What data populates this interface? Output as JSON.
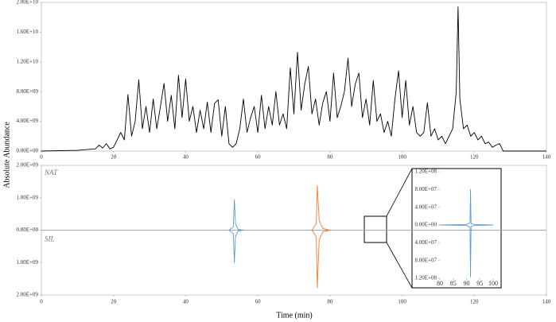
{
  "chart_data": [
    {
      "type": "line",
      "y_label": "Absolute Abundance",
      "xlim": [
        0,
        140
      ],
      "xticks": [
        0,
        20,
        40,
        60,
        80,
        100,
        120,
        140
      ],
      "ylim": [
        0,
        20000000000.0
      ],
      "yticks": [
        {
          "value": 0,
          "label": "0.00E+00"
        },
        {
          "value": 4000000000.0,
          "label": "4.00E+09"
        },
        {
          "value": 8000000000.0,
          "label": "8.00E+09"
        },
        {
          "value": 12000000000.0,
          "label": "1.20E+10"
        },
        {
          "value": 16000000000.0,
          "label": "1.60E+10"
        },
        {
          "value": 20000000000.0,
          "label": "2.00E+10"
        }
      ],
      "series": [
        {
          "color": "#000000",
          "x": [
            0,
            10,
            15,
            16,
            17,
            18,
            19,
            20,
            21,
            22,
            23,
            24,
            25,
            26,
            27,
            28,
            29,
            30,
            31,
            32,
            33,
            34,
            35,
            36,
            37,
            38,
            39,
            40,
            41,
            42,
            43,
            44,
            45,
            46,
            47,
            48,
            49,
            50,
            51,
            52,
            53,
            54,
            55,
            56,
            57,
            58,
            59,
            60,
            61,
            62,
            63,
            64,
            65,
            66,
            67,
            68,
            69,
            70,
            71,
            72,
            73,
            74,
            75,
            76,
            77,
            78,
            79,
            80,
            81,
            82,
            83,
            84,
            85,
            86,
            87,
            88,
            89,
            90,
            91,
            92,
            93,
            94,
            95,
            96,
            97,
            98,
            99,
            100,
            101,
            102,
            103,
            104,
            105,
            106,
            107,
            108,
            109,
            110,
            111,
            112,
            113,
            114,
            115,
            115.5,
            116,
            117,
            118,
            119,
            120,
            121,
            122,
            123,
            124,
            125,
            126,
            127,
            128,
            140
          ],
          "values": [
            0,
            100000000.0,
            300000000.0,
            800000000.0,
            400000000.0,
            1000000000.0,
            300000000.0,
            500000000.0,
            1500000000.0,
            2500000000.0,
            1500000000.0,
            7600000000.0,
            2000000000.0,
            4000000000.0,
            9600000000.0,
            3000000000.0,
            6000000000.0,
            2500000000.0,
            7000000000.0,
            3000000000.0,
            6000000000.0,
            9100000000.0,
            4000000000.0,
            7500000000.0,
            3000000000.0,
            10200000000.0,
            4500000000.0,
            9700000000.0,
            4000000000.0,
            6000000000.0,
            2500000000.0,
            5500000000.0,
            3000000000.0,
            6600000000.0,
            2500000000.0,
            6400000000.0,
            6900000000.0,
            2000000000.0,
            6000000000.0,
            1000000000.0,
            500000000.0,
            1000000000.0,
            3000000000.0,
            7000000000.0,
            2500000000.0,
            4500000000.0,
            6000000000.0,
            2500000000.0,
            7500000000.0,
            3000000000.0,
            6000000000.0,
            3500000000.0,
            8000000000.0,
            3500000000.0,
            5000000000.0,
            3000000000.0,
            11200000000.0,
            5000000000.0,
            13300000000.0,
            5500000000.0,
            9000000000.0,
            11400000000.0,
            5000000000.0,
            7000000000.0,
            3500000000.0,
            6500000000.0,
            8000000000.0,
            4000000000.0,
            10500000000.0,
            4500000000.0,
            6000000000.0,
            8000000000.0,
            12500000000.0,
            6000000000.0,
            9000000000.0,
            10500000000.0,
            4500000000.0,
            7000000000.0,
            3500000000.0,
            9500000000.0,
            4000000000.0,
            5000000000.0,
            2500000000.0,
            4000000000.0,
            2000000000.0,
            7000000000.0,
            10800000000.0,
            4500000000.0,
            9500000000.0,
            3500000000.0,
            6000000000.0,
            2500000000.0,
            2000000000.0,
            2500000000.0,
            6500000000.0,
            2000000000.0,
            3000000000.0,
            1500000000.0,
            2000000000.0,
            1000000000.0,
            2000000000.0,
            3000000000.0,
            8000000000.0,
            19400000000.0,
            7000000000.0,
            3000000000.0,
            3500000000.0,
            2000000000.0,
            2500000000.0,
            1500000000.0,
            2000000000.0,
            1000000000.0,
            1200000000.0,
            500000000.0,
            800000000.0,
            1000000000.0,
            0,
            0
          ]
        }
      ]
    },
    {
      "type": "line",
      "x_label": "Time (min)",
      "annotations": [
        "NAT",
        "SIL"
      ],
      "xlim": [
        0,
        140
      ],
      "xticks": [
        0,
        20,
        40,
        60,
        80,
        100,
        120,
        140
      ],
      "ylim": [
        -2000000000.0,
        2000000000.0
      ],
      "yticks": [
        {
          "value": -2000000000.0,
          "label": "2.00E+09"
        },
        {
          "value": -1000000000.0,
          "label": "1.00E+09"
        },
        {
          "value": 0,
          "label": "0.00E+00"
        },
        {
          "value": 1000000000.0,
          "label": "1.00E+09"
        },
        {
          "value": 2000000000.0,
          "label": "2.00E+09"
        }
      ],
      "series": [
        {
          "color": "#a6a6a6",
          "x": [
            0,
            140
          ],
          "values": [
            0,
            0
          ]
        },
        {
          "color": "#5b9bd5",
          "x": [
            52,
            53.2,
            53.5,
            53.8,
            54.5,
            56
          ],
          "values": [
            0,
            100000000.0,
            950000000.0,
            200000000.0,
            30000000.0,
            0
          ]
        },
        {
          "color": "#5b9bd5",
          "x": [
            52,
            53.2,
            53.5,
            53.8,
            54.5,
            56
          ],
          "values": [
            0,
            -100000000.0,
            -1000000000.0,
            -200000000.0,
            -30000000.0,
            0
          ]
        },
        {
          "color": "#ed7d31",
          "x": [
            75,
            76.2,
            76.5,
            77,
            78,
            80
          ],
          "values": [
            0,
            200000000.0,
            1380000000.0,
            300000000.0,
            50000000.0,
            0
          ]
        },
        {
          "color": "#ed7d31",
          "x": [
            75,
            76.2,
            76.5,
            77,
            78,
            80
          ],
          "values": [
            0,
            -200000000.0,
            -1780000000.0,
            -300000000.0,
            -50000000.0,
            0
          ]
        }
      ]
    },
    {
      "type": "line",
      "xlim": [
        80,
        100
      ],
      "xticks": [
        80,
        85,
        90,
        95,
        100
      ],
      "ylim": [
        -120000000.0,
        120000000.0
      ],
      "yticks": [
        {
          "value": -120000000.0,
          "label": "1.20E+08"
        },
        {
          "value": -80000000.0,
          "label": "8.00E+07"
        },
        {
          "value": -40000000.0,
          "label": "4.00E+07"
        },
        {
          "value": 0,
          "label": "0.00E+00"
        },
        {
          "value": 40000000.0,
          "label": "4.00E+07"
        },
        {
          "value": 80000000.0,
          "label": "8.00E+07"
        },
        {
          "value": 120000000.0,
          "label": "1.20E+08"
        }
      ],
      "series": [
        {
          "color": "#5b9bd5",
          "x": [
            80,
            90,
            91.3,
            91.5,
            91.7,
            93,
            100
          ],
          "values": [
            0,
            1000000.0,
            5000000.0,
            80000000.0,
            3000000.0,
            1000000.0,
            0
          ]
        },
        {
          "color": "#5b9bd5",
          "x": [
            80,
            90,
            91.3,
            91.5,
            91.7,
            93,
            100
          ],
          "values": [
            0,
            -1000000.0,
            -5000000.0,
            -117000000.0,
            -3000000.0,
            -1000000.0,
            0
          ]
        }
      ]
    }
  ]
}
